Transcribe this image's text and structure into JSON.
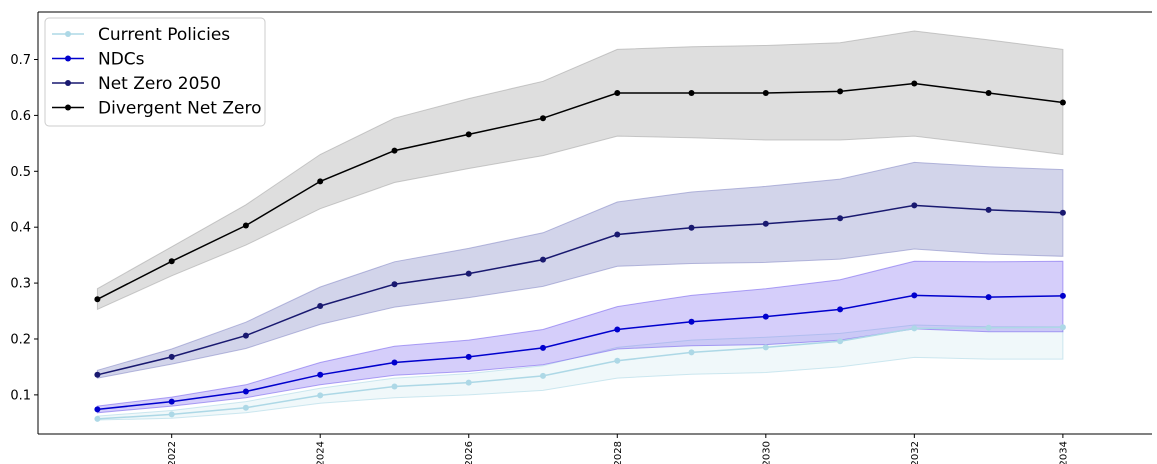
{
  "chart_data": {
    "type": "line",
    "x": [
      2021,
      2022,
      2023,
      2024,
      2025,
      2026,
      2027,
      2028,
      2029,
      2030,
      2031,
      2032,
      2033,
      2034
    ],
    "xticks": [
      2022,
      2024,
      2026,
      2028,
      2030,
      2032,
      2034
    ],
    "xtick_labels": [
      "2022",
      "2024",
      "2026",
      "2028",
      "2030",
      "2032",
      "2034"
    ],
    "yticks": [
      0.1,
      0.2,
      0.3,
      0.4,
      0.5,
      0.6,
      0.7
    ],
    "ytick_labels": [
      "0.1",
      "0.2",
      "0.3",
      "0.4",
      "0.5",
      "0.6",
      "0.7"
    ],
    "xlim": [
      2020.2,
      2035.2
    ],
    "ylim": [
      0.03,
      0.785
    ],
    "grid": false,
    "legend_position": "top-left",
    "series": [
      {
        "name": "Current Policies",
        "color": "#add8e6",
        "fill": "#add8e6",
        "values": [
          0.057,
          0.065,
          0.077,
          0.099,
          0.115,
          0.122,
          0.134,
          0.161,
          0.176,
          0.185,
          0.196,
          0.219,
          0.22,
          0.221
        ],
        "lower": [
          0.055,
          0.058,
          0.068,
          0.085,
          0.095,
          0.1,
          0.108,
          0.13,
          0.137,
          0.14,
          0.15,
          0.167,
          0.164,
          0.164
        ],
        "upper": [
          0.062,
          0.072,
          0.088,
          0.112,
          0.13,
          0.138,
          0.152,
          0.185,
          0.198,
          0.203,
          0.21,
          0.225,
          0.222,
          0.222
        ]
      },
      {
        "name": "NDCs",
        "color": "#0000cd",
        "fill": "#7b68ee",
        "values": [
          0.074,
          0.088,
          0.106,
          0.136,
          0.158,
          0.168,
          0.184,
          0.217,
          0.231,
          0.24,
          0.253,
          0.278,
          0.275,
          0.277
        ],
        "lower": [
          0.068,
          0.08,
          0.095,
          0.118,
          0.135,
          0.142,
          0.154,
          0.182,
          0.188,
          0.19,
          0.198,
          0.218,
          0.213,
          0.213
        ],
        "upper": [
          0.08,
          0.096,
          0.118,
          0.158,
          0.187,
          0.198,
          0.217,
          0.258,
          0.278,
          0.29,
          0.306,
          0.339,
          0.338,
          0.339
        ]
      },
      {
        "name": "Net Zero 2050",
        "color": "#191970",
        "fill": "#8a8ec8",
        "values": [
          0.136,
          0.168,
          0.206,
          0.259,
          0.298,
          0.317,
          0.342,
          0.387,
          0.399,
          0.406,
          0.416,
          0.439,
          0.431,
          0.426
        ],
        "lower": [
          0.13,
          0.155,
          0.183,
          0.226,
          0.257,
          0.274,
          0.294,
          0.33,
          0.335,
          0.337,
          0.343,
          0.361,
          0.352,
          0.348
        ],
        "upper": [
          0.144,
          0.182,
          0.23,
          0.293,
          0.338,
          0.362,
          0.39,
          0.445,
          0.463,
          0.473,
          0.486,
          0.516,
          0.508,
          0.503
        ]
      },
      {
        "name": "Divergent Net Zero",
        "color": "#000000",
        "fill": "#a9a9a9",
        "values": [
          0.271,
          0.339,
          0.403,
          0.482,
          0.537,
          0.566,
          0.595,
          0.64,
          0.64,
          0.64,
          0.643,
          0.657,
          0.64,
          0.623
        ],
        "lower": [
          0.253,
          0.313,
          0.368,
          0.433,
          0.48,
          0.505,
          0.528,
          0.563,
          0.56,
          0.556,
          0.556,
          0.563,
          0.547,
          0.53
        ],
        "upper": [
          0.29,
          0.365,
          0.44,
          0.53,
          0.595,
          0.63,
          0.661,
          0.718,
          0.723,
          0.725,
          0.73,
          0.751,
          0.735,
          0.718
        ]
      }
    ]
  }
}
